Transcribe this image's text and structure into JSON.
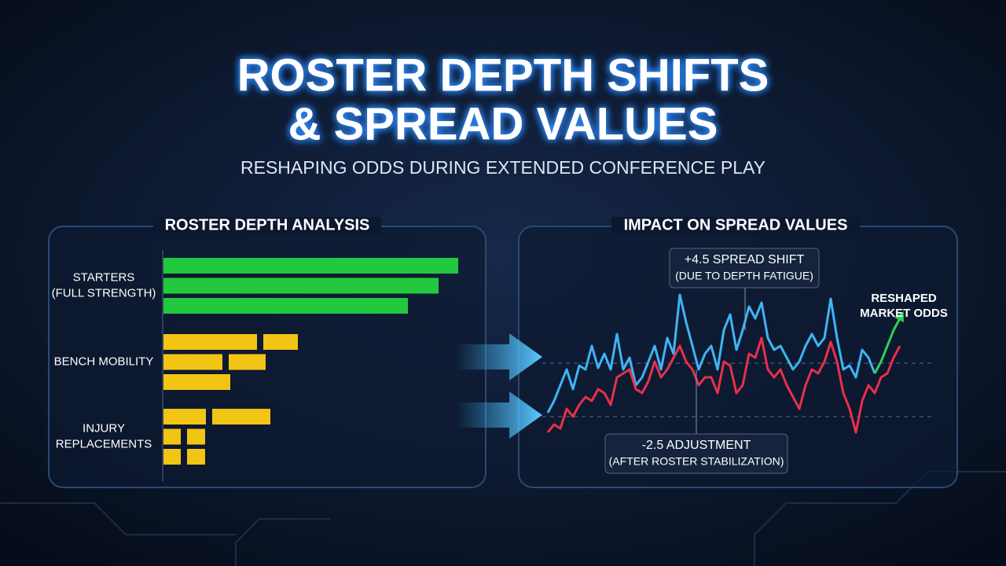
{
  "header": {
    "title_lines": [
      "ROSTER DEPTH SHIFTS",
      "& SPREAD VALUES"
    ],
    "subtitle": "RESHAPING ODDS DURING EXTENDED CONFERENCE PLAY"
  },
  "chart_data": [
    {
      "type": "bar",
      "title": "ROSTER DEPTH ANALYSIS",
      "xlim": [
        0,
        400
      ],
      "groups": [
        {
          "label_lines": [
            "STARTERS",
            "(FULL STRENGTH)"
          ],
          "color": "#22c93e",
          "bars": [
            [
              375
            ],
            [
              350
            ],
            [
              311
            ]
          ]
        },
        {
          "label_lines": [
            "BENCH MOBILITY"
          ],
          "color": "#f2c414",
          "bars": [
            [
              119,
              44
            ],
            [
              75,
              47
            ],
            [
              85
            ]
          ]
        },
        {
          "label_lines": [
            "INJURY",
            "REPLACEMENTS"
          ],
          "color": "#f2c414",
          "bars": [
            [
              54,
              74
            ],
            [
              22,
              23
            ],
            [
              22,
              23
            ]
          ]
        }
      ]
    },
    {
      "type": "line",
      "title": "IMPACT ON SPREAD VALUES",
      "ylim": [
        0,
        300
      ],
      "reference_lines": [
        138,
        70
      ],
      "series": [
        {
          "color": "#3fb4f5",
          "values": [
            75,
            90,
            110,
            130,
            105,
            135,
            130,
            160,
            132,
            150,
            130,
            175,
            130,
            145,
            110,
            120,
            140,
            160,
            130,
            170,
            150,
            225,
            190,
            160,
            130,
            150,
            160,
            130,
            180,
            200,
            155,
            180,
            210,
            195,
            215,
            170,
            155,
            160,
            145,
            130,
            140,
            160,
            175,
            160,
            170,
            220,
            170,
            130,
            135,
            120,
            155,
            145,
            125,
            null,
            null,
            null,
            null
          ]
        },
        {
          "color": "#e8304a",
          "values": [
            50,
            60,
            55,
            80,
            70,
            85,
            95,
            90,
            105,
            100,
            85,
            120,
            125,
            130,
            105,
            100,
            115,
            140,
            120,
            130,
            145,
            160,
            140,
            130,
            110,
            120,
            120,
            100,
            140,
            135,
            100,
            110,
            150,
            145,
            170,
            130,
            120,
            130,
            110,
            95,
            80,
            110,
            130,
            125,
            140,
            165,
            140,
            100,
            80,
            50,
            90,
            110,
            100,
            120,
            125,
            145,
            160
          ]
        },
        {
          "color": "#2ed158",
          "values": [
            null,
            null,
            null,
            null,
            null,
            null,
            null,
            null,
            null,
            null,
            null,
            null,
            null,
            null,
            null,
            null,
            null,
            null,
            null,
            null,
            null,
            null,
            null,
            null,
            null,
            null,
            null,
            null,
            null,
            null,
            null,
            null,
            null,
            null,
            null,
            null,
            null,
            null,
            null,
            null,
            null,
            null,
            null,
            null,
            null,
            null,
            null,
            null,
            null,
            null,
            null,
            null,
            125,
            140,
            160,
            180,
            195
          ]
        }
      ],
      "annotations": [
        {
          "lines": [
            "+4.5 SPREAD SHIFT",
            "(DUE TO DEPTH FATIGUE)"
          ]
        },
        {
          "lines": [
            "-2.5 ADJUSTMENT",
            "(AFTER ROSTER STABILIZATION)"
          ]
        },
        {
          "lines": [
            "RESHAPED",
            "MARKET ODDS"
          ]
        }
      ]
    }
  ]
}
